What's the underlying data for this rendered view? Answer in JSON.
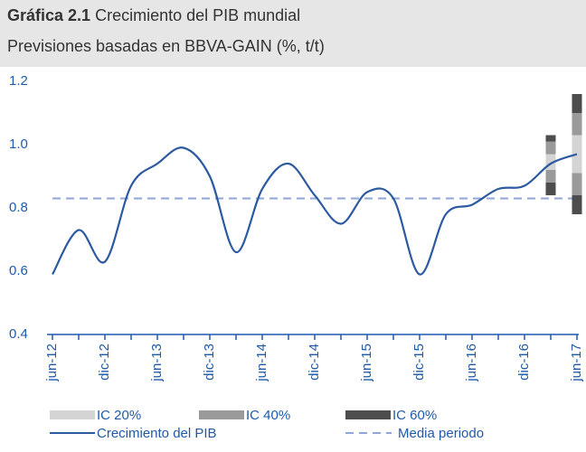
{
  "chart_data": {
    "type": "line",
    "title": {
      "number": "Gráfica 2.1",
      "text": "Crecimiento del PIB mundial"
    },
    "subtitle": "Previsiones basadas en BBVA-GAIN (%, t/t)",
    "categories": [
      "jun-12",
      null,
      "dic-12",
      null,
      "jun-13",
      null,
      "dic-13",
      null,
      "jun-14",
      null,
      "dic-14",
      null,
      "jun-15",
      null,
      "dic-15",
      null,
      "jun-16",
      null,
      "dic-16",
      null,
      "jun-17"
    ],
    "series": [
      {
        "name": "Crecimiento del PIB",
        "color": "#2b5aa0",
        "values": [
          0.59,
          0.73,
          0.63,
          0.87,
          0.94,
          0.99,
          0.9,
          0.66,
          0.86,
          0.94,
          0.84,
          0.75,
          0.85,
          0.83,
          0.59,
          0.78,
          0.81,
          0.86,
          0.87,
          0.94,
          0.97
        ]
      }
    ],
    "mean": {
      "name": "Media periodo",
      "color": "#8ea6d8",
      "value": 0.83
    },
    "intervals": [
      {
        "name": "IC 60%",
        "color": "#4d4d4d",
        "low": [
          null,
          null,
          null,
          null,
          null,
          null,
          null,
          null,
          null,
          null,
          null,
          null,
          null,
          null,
          null,
          null,
          null,
          null,
          null,
          0.84,
          0.78
        ],
        "high": [
          null,
          null,
          null,
          null,
          null,
          null,
          null,
          null,
          null,
          null,
          null,
          null,
          null,
          null,
          null,
          null,
          null,
          null,
          null,
          1.03,
          1.16
        ]
      },
      {
        "name": "IC 40%",
        "color": "#9a9a9a",
        "low": [
          null,
          null,
          null,
          null,
          null,
          null,
          null,
          null,
          null,
          null,
          null,
          null,
          null,
          null,
          null,
          null,
          null,
          null,
          null,
          0.88,
          0.84
        ],
        "high": [
          null,
          null,
          null,
          null,
          null,
          null,
          null,
          null,
          null,
          null,
          null,
          null,
          null,
          null,
          null,
          null,
          null,
          null,
          null,
          1.01,
          1.1
        ]
      },
      {
        "name": "IC 20%",
        "color": "#d4d4d4",
        "low": [
          null,
          null,
          null,
          null,
          null,
          null,
          null,
          null,
          null,
          null,
          null,
          null,
          null,
          null,
          null,
          null,
          null,
          null,
          null,
          0.92,
          0.91
        ],
        "high": [
          null,
          null,
          null,
          null,
          null,
          null,
          null,
          null,
          null,
          null,
          null,
          null,
          null,
          null,
          null,
          null,
          null,
          null,
          null,
          0.97,
          1.03
        ]
      }
    ],
    "ylim": [
      0.4,
      1.2
    ],
    "yticks": [
      0.4,
      0.6,
      0.8,
      {
        "value": 1,
        "label": "1.0"
      },
      1.2
    ]
  }
}
